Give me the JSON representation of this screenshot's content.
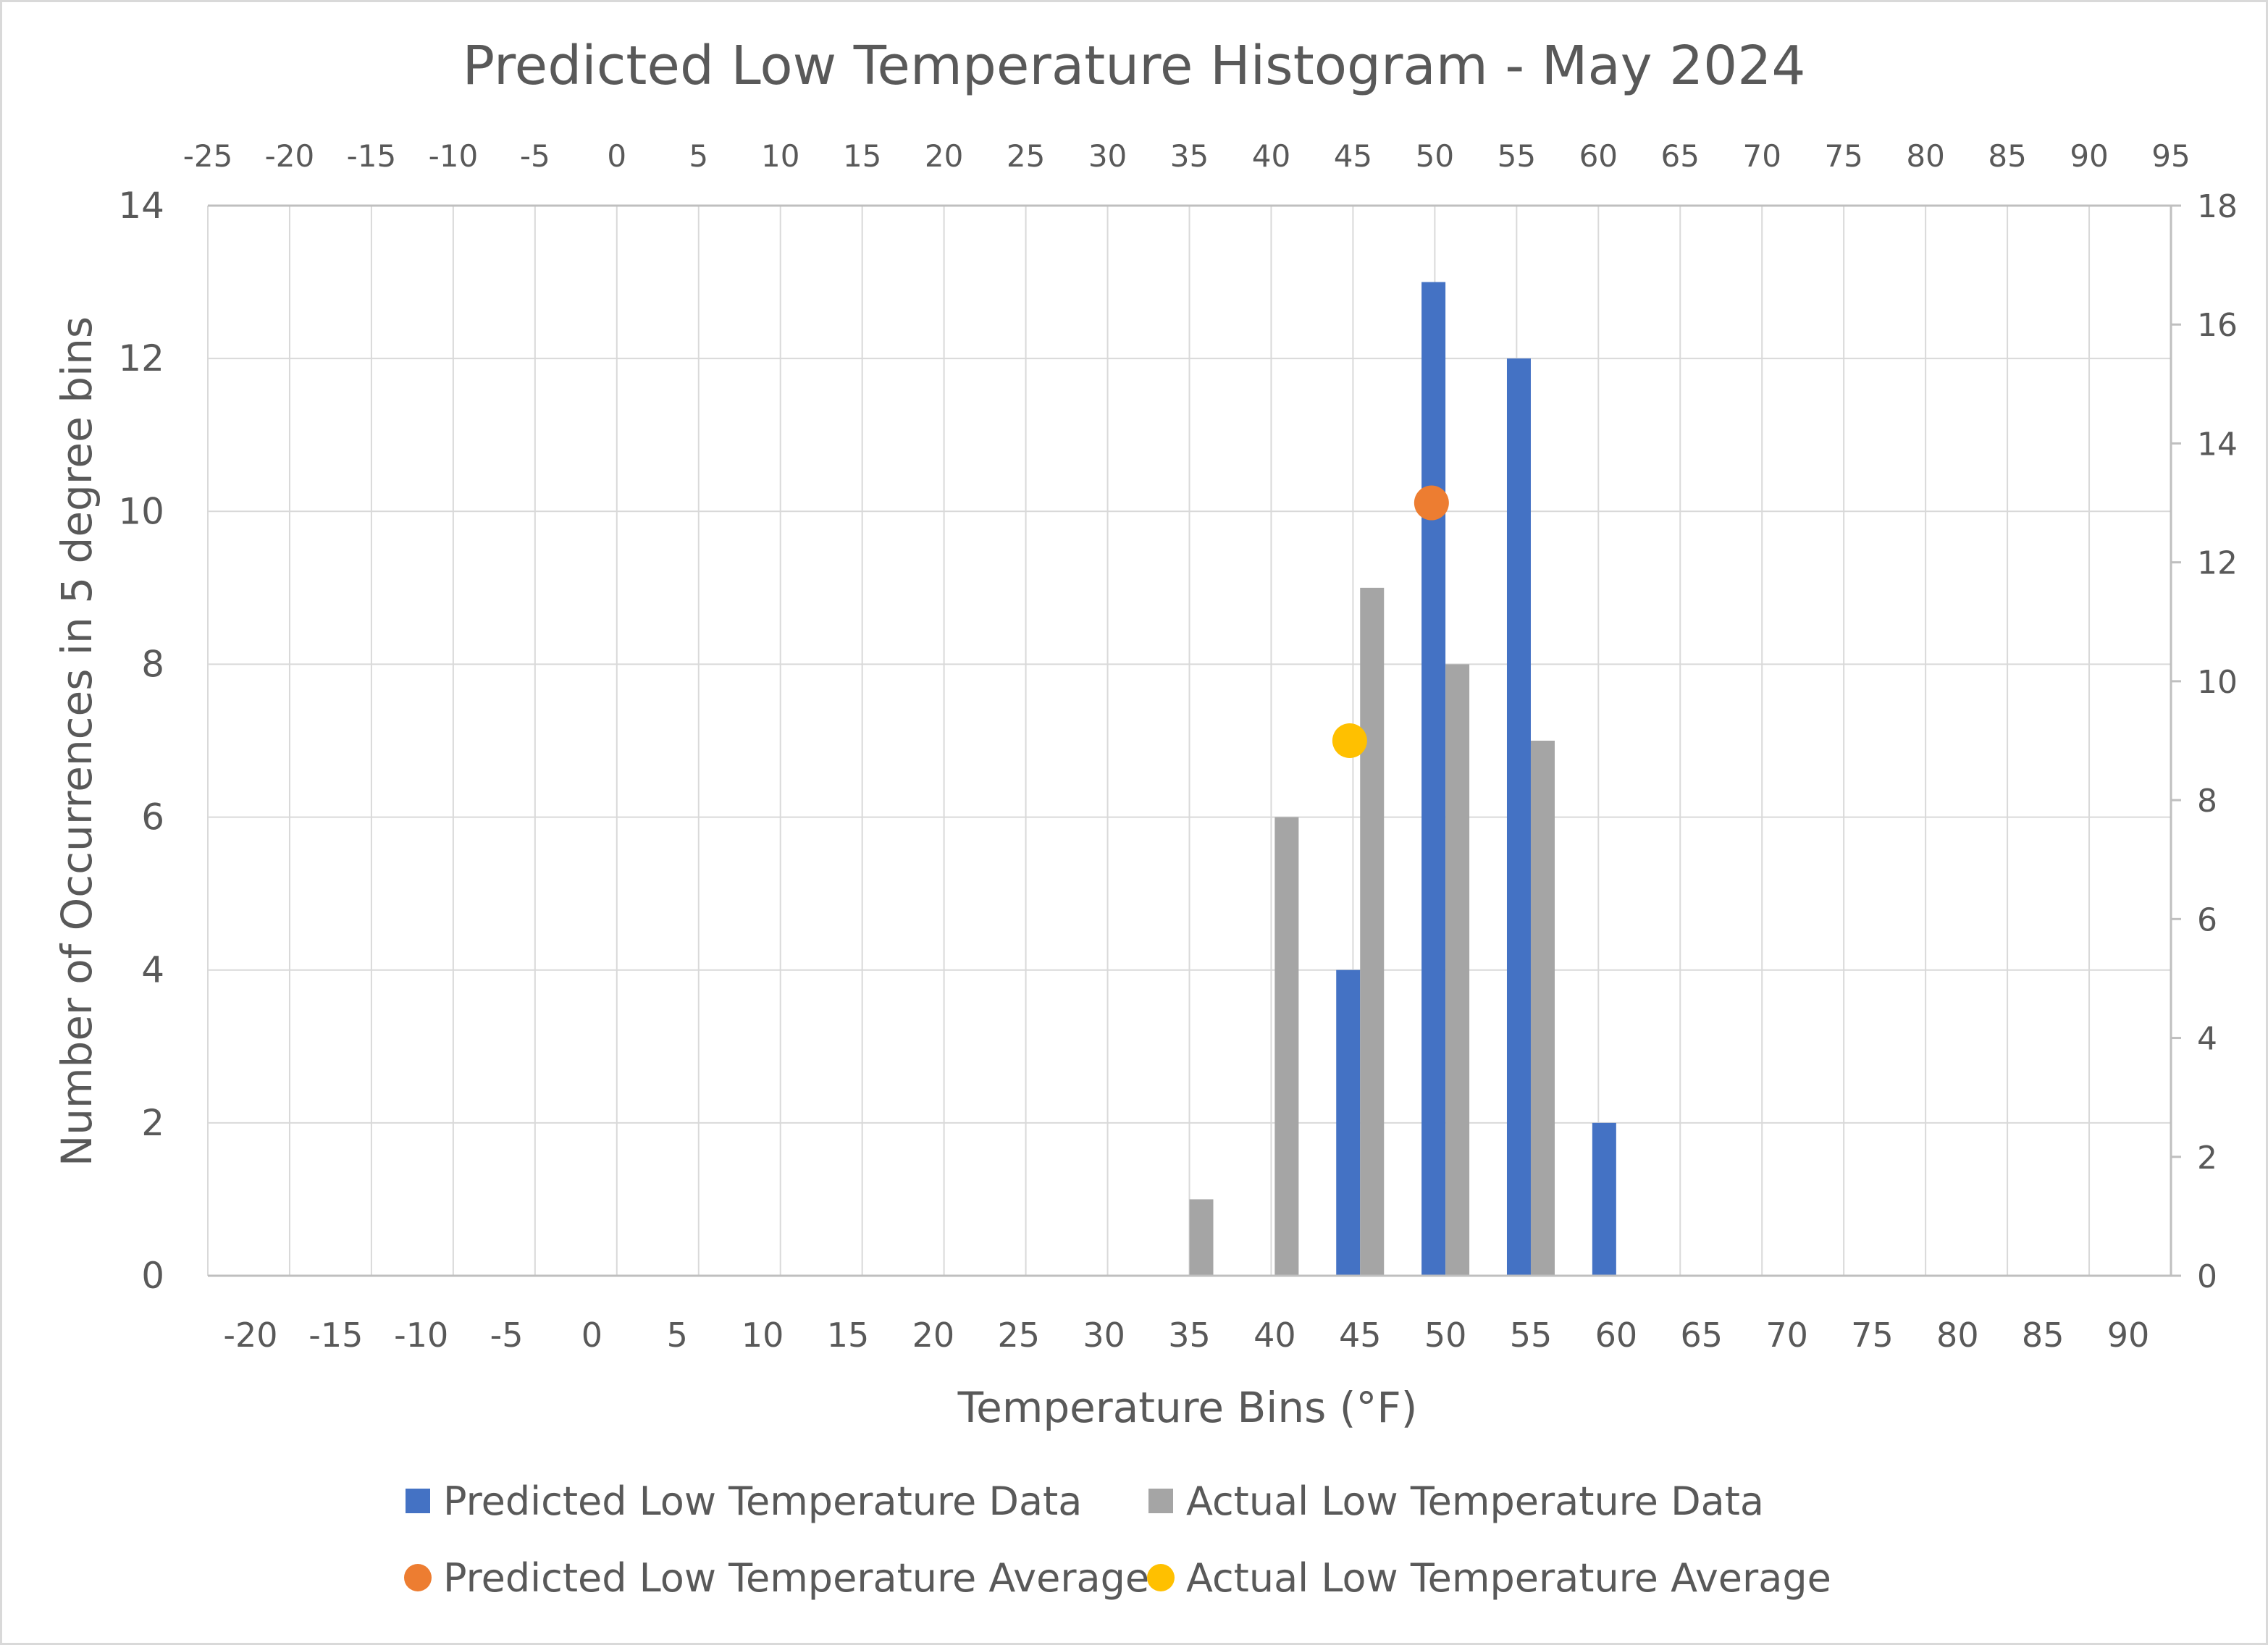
{
  "chart_data": {
    "type": "bar",
    "title": "Predicted Low Temperature Histogram - May 2024",
    "xlabel": "Temperature Bins (°F)",
    "ylabel": "Number of Occurrences in 5 degree bins",
    "categories": [
      "-20",
      "-15",
      "-10",
      "-5",
      "0",
      "5",
      "10",
      "15",
      "20",
      "25",
      "30",
      "35",
      "40",
      "45",
      "50",
      "55",
      "60",
      "65",
      "70",
      "75",
      "80",
      "85",
      "90"
    ],
    "ylim": [
      0,
      14
    ],
    "yticks": [
      0,
      2,
      4,
      6,
      8,
      10,
      12,
      14
    ],
    "y2lim": [
      0,
      18
    ],
    "y2ticks": [
      0,
      2,
      4,
      6,
      8,
      10,
      12,
      14,
      16,
      18
    ],
    "x2lim": [
      -25,
      95
    ],
    "x2ticks": [
      -25,
      -20,
      -15,
      -10,
      -5,
      0,
      5,
      10,
      15,
      20,
      25,
      30,
      35,
      40,
      45,
      50,
      55,
      60,
      65,
      70,
      75,
      80,
      85,
      90,
      95
    ],
    "grid": true,
    "legend_position": "bottom",
    "series": [
      {
        "name": "Predicted Low Temperature Data",
        "kind": "bar",
        "color": "#4472C4",
        "values": [
          0,
          0,
          0,
          0,
          0,
          0,
          0,
          0,
          0,
          0,
          0,
          0,
          0,
          4,
          13,
          12,
          2,
          0,
          0,
          0,
          0,
          0,
          0
        ]
      },
      {
        "name": "Actual Low Temperature Data",
        "kind": "bar",
        "color": "#A5A5A5",
        "values": [
          0,
          0,
          0,
          0,
          0,
          0,
          0,
          0,
          0,
          0,
          0,
          1,
          6,
          9,
          8,
          7,
          0,
          0,
          0,
          0,
          0,
          0,
          0
        ]
      },
      {
        "name": "Predicted Low Temperature Average",
        "kind": "scatter",
        "axes": "secondary",
        "color": "#ED7D31",
        "points": [
          {
            "x": 49.8,
            "y": 13
          }
        ]
      },
      {
        "name": "Actual Low Temperature Average",
        "kind": "scatter",
        "axes": "secondary",
        "color": "#FFC000",
        "points": [
          {
            "x": 44.8,
            "y": 9
          }
        ]
      }
    ]
  }
}
